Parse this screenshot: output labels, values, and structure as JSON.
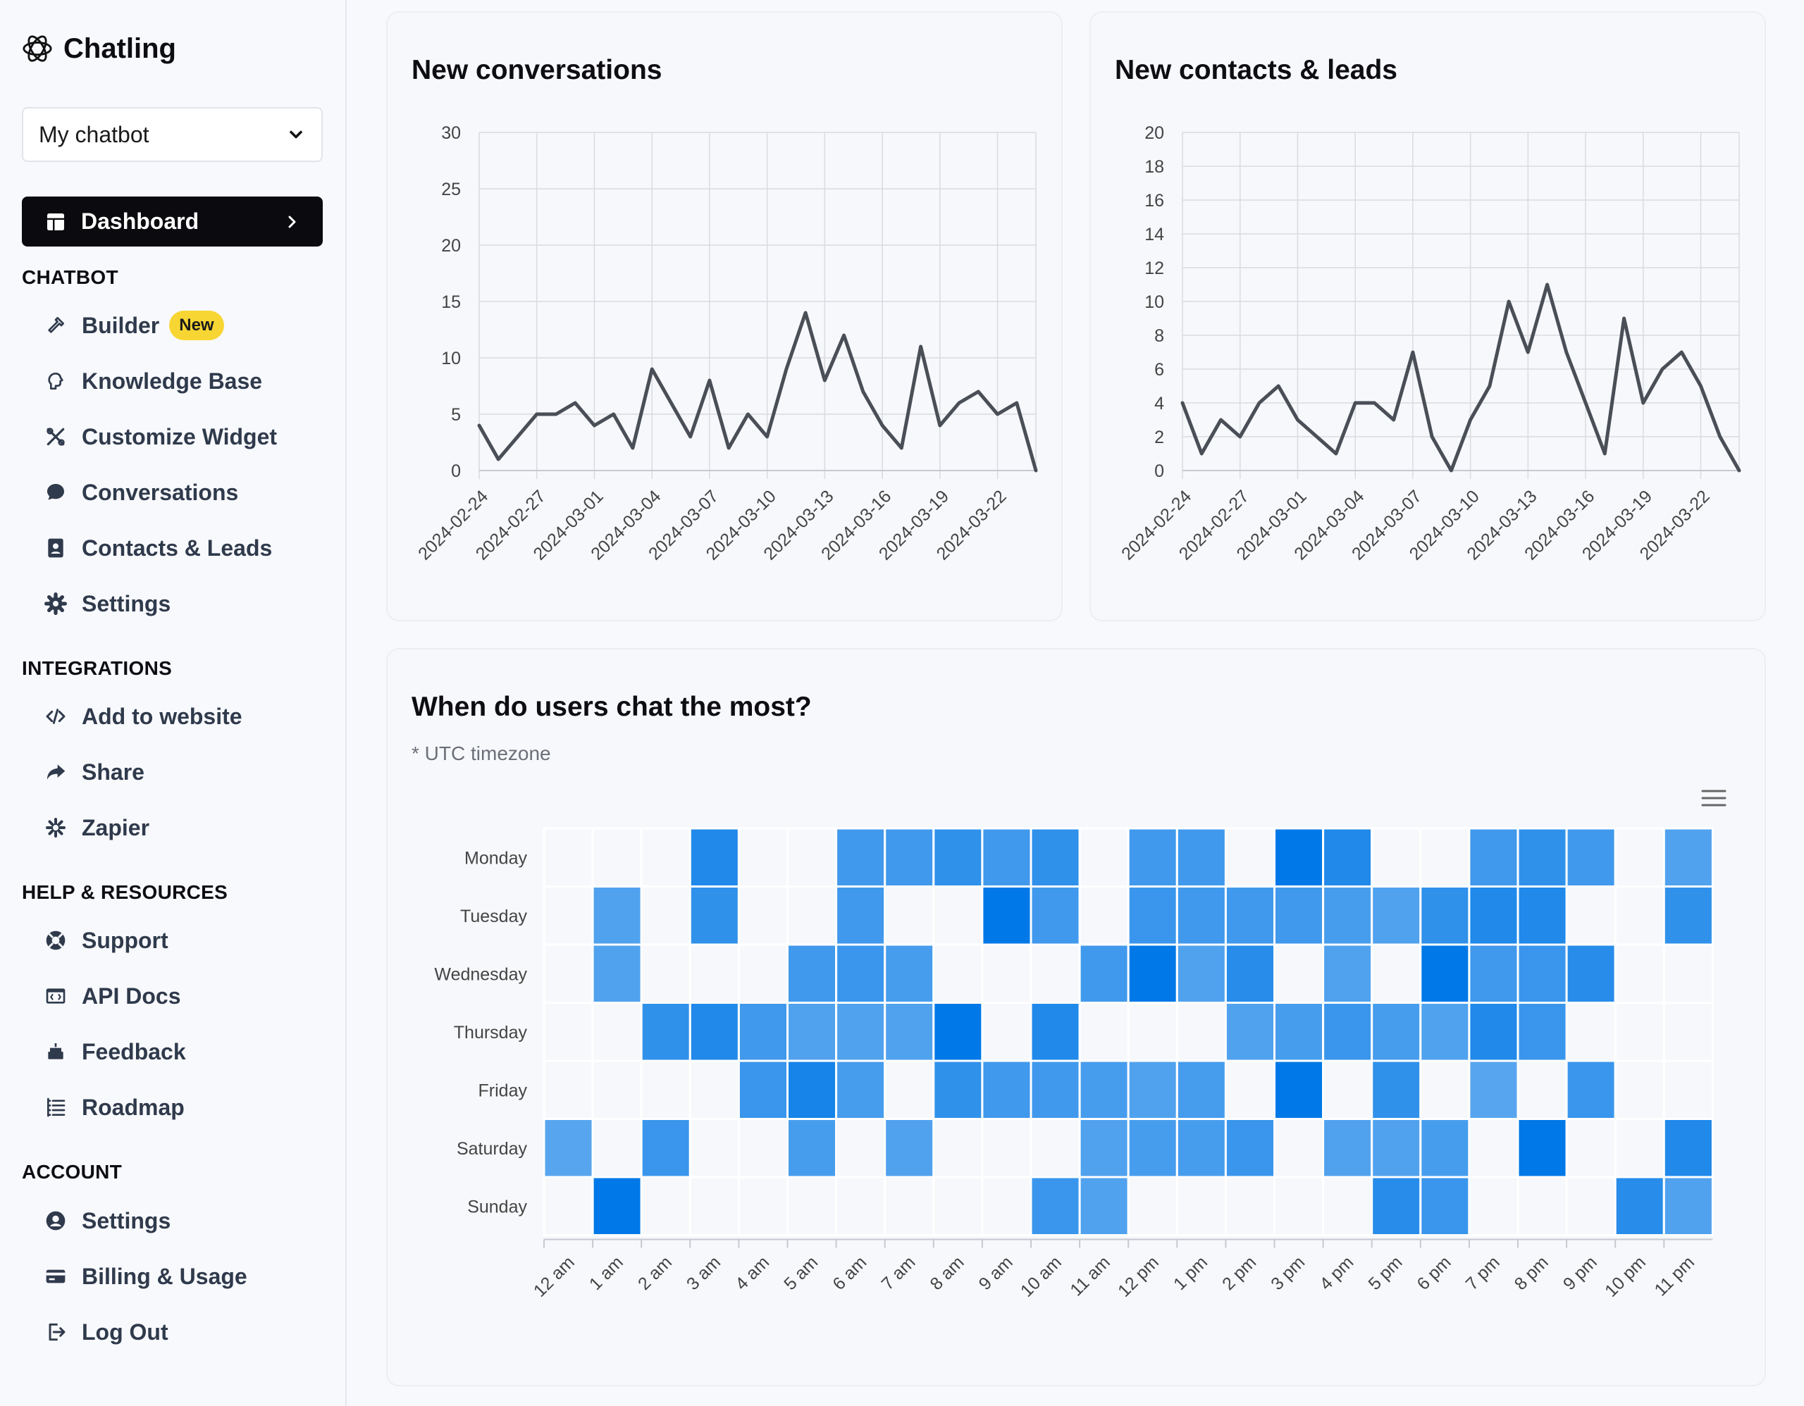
{
  "app": {
    "brand": "Chatling"
  },
  "sidebar": {
    "bot_selector": "My chatbot",
    "dashboard_label": "Dashboard",
    "sections": {
      "chatbot": "CHATBOT",
      "integrations": "INTEGRATIONS",
      "help": "HELP & RESOURCES",
      "account": "ACCOUNT"
    },
    "chatbot_items": [
      {
        "label": "Builder",
        "badge": "New",
        "icon": "hammer-icon"
      },
      {
        "label": "Knowledge Base",
        "icon": "brain-icon"
      },
      {
        "label": "Customize Widget",
        "icon": "tools-icon"
      },
      {
        "label": "Conversations",
        "icon": "chat-bubble-icon"
      },
      {
        "label": "Contacts & Leads",
        "icon": "contact-book-icon"
      },
      {
        "label": "Settings",
        "icon": "gear-icon"
      }
    ],
    "integration_items": [
      {
        "label": "Add to website",
        "icon": "code-icon"
      },
      {
        "label": "Share",
        "icon": "share-arrow-icon"
      },
      {
        "label": "Zapier",
        "icon": "asterisk-icon"
      }
    ],
    "help_items": [
      {
        "label": "Support",
        "icon": "lifebuoy-icon"
      },
      {
        "label": "API Docs",
        "icon": "api-window-icon"
      },
      {
        "label": "Feedback",
        "icon": "cake-icon"
      },
      {
        "label": "Roadmap",
        "icon": "list-icon"
      }
    ],
    "account_items": [
      {
        "label": "Settings",
        "icon": "user-circle-icon"
      },
      {
        "label": "Billing & Usage",
        "icon": "credit-card-icon"
      },
      {
        "label": "Log Out",
        "icon": "logout-icon"
      }
    ]
  },
  "colors": {
    "line": "#4a4f57",
    "heat_max": "#0078e7",
    "heat_min": "#f7f8fb"
  },
  "conversations_card": {
    "title": "New conversations"
  },
  "contacts_card": {
    "title": "New contacts & leads"
  },
  "heatmap_card": {
    "title": "When do users chat the most?",
    "note": "* UTC timezone"
  },
  "chart_data": [
    {
      "type": "line",
      "title": "New conversations",
      "ylim": [
        0,
        30
      ],
      "yticks": [
        0,
        5,
        10,
        15,
        20,
        25,
        30
      ],
      "xtick_labels": [
        "2024-02-24",
        "2024-02-27",
        "2024-03-01",
        "2024-03-04",
        "2024-03-07",
        "2024-03-10",
        "2024-03-13",
        "2024-03-16",
        "2024-03-19",
        "2024-03-22"
      ],
      "x": [
        "2024-02-24",
        "2024-02-25",
        "2024-02-26",
        "2024-02-27",
        "2024-02-28",
        "2024-02-29",
        "2024-03-01",
        "2024-03-02",
        "2024-03-03",
        "2024-03-04",
        "2024-03-05",
        "2024-03-06",
        "2024-03-07",
        "2024-03-08",
        "2024-03-09",
        "2024-03-10",
        "2024-03-11",
        "2024-03-12",
        "2024-03-13",
        "2024-03-14",
        "2024-03-15",
        "2024-03-16",
        "2024-03-17",
        "2024-03-18",
        "2024-03-19",
        "2024-03-20",
        "2024-03-21",
        "2024-03-22",
        "2024-03-23",
        "2024-03-24"
      ],
      "values": [
        4,
        1,
        3,
        5,
        5,
        6,
        4,
        5,
        2,
        9,
        6,
        3,
        8,
        2,
        5,
        3,
        9,
        14,
        8,
        12,
        7,
        4,
        2,
        11,
        4,
        6,
        7,
        5,
        6,
        0
      ],
      "grid": true
    },
    {
      "type": "line",
      "title": "New contacts & leads",
      "ylim": [
        0,
        20
      ],
      "yticks": [
        0,
        2,
        4,
        6,
        8,
        10,
        12,
        14,
        16,
        18,
        20
      ],
      "xtick_labels": [
        "2024-02-24",
        "2024-02-27",
        "2024-03-01",
        "2024-03-04",
        "2024-03-07",
        "2024-03-10",
        "2024-03-13",
        "2024-03-16",
        "2024-03-19",
        "2024-03-22"
      ],
      "x": [
        "2024-02-24",
        "2024-02-25",
        "2024-02-26",
        "2024-02-27",
        "2024-02-28",
        "2024-02-29",
        "2024-03-01",
        "2024-03-02",
        "2024-03-03",
        "2024-03-04",
        "2024-03-05",
        "2024-03-06",
        "2024-03-07",
        "2024-03-08",
        "2024-03-09",
        "2024-03-10",
        "2024-03-11",
        "2024-03-12",
        "2024-03-13",
        "2024-03-14",
        "2024-03-15",
        "2024-03-16",
        "2024-03-17",
        "2024-03-18",
        "2024-03-19",
        "2024-03-20",
        "2024-03-21",
        "2024-03-22",
        "2024-03-23",
        "2024-03-24"
      ],
      "values": [
        4,
        1,
        3,
        2,
        4,
        5,
        3,
        2,
        1,
        4,
        4,
        3,
        7,
        2,
        0,
        3,
        5,
        10,
        7,
        11,
        7,
        4,
        1,
        9,
        4,
        6,
        7,
        5,
        2,
        0
      ],
      "grid": true
    },
    {
      "type": "heatmap",
      "title": "When do users chat the most?",
      "rows": [
        "Monday",
        "Tuesday",
        "Wednesday",
        "Thursday",
        "Friday",
        "Saturday",
        "Sunday"
      ],
      "columns": [
        "12 am",
        "1 am",
        "2 am",
        "3 am",
        "4 am",
        "5 am",
        "6 am",
        "7 am",
        "8 am",
        "9 am",
        "10 am",
        "11 am",
        "12 pm",
        "1 pm",
        "2 pm",
        "3 pm",
        "4 pm",
        "5 pm",
        "6 pm",
        "7 pm",
        "8 pm",
        "9 pm",
        "10 pm",
        "11 pm"
      ],
      "scale_max": 5,
      "values": [
        [
          0,
          0,
          0,
          4,
          0,
          0,
          3,
          3,
          3.5,
          3,
          3.5,
          0,
          3,
          3,
          0,
          5,
          4,
          0,
          0,
          3,
          3.5,
          3,
          0,
          2.5
        ],
        [
          0,
          2.5,
          0,
          3.5,
          0,
          0,
          3,
          0,
          0,
          5,
          3,
          0,
          3.2,
          3,
          3,
          3,
          2.8,
          2.5,
          3.5,
          4,
          4,
          0,
          0,
          3.5
        ],
        [
          0,
          2.5,
          0,
          0,
          0,
          3,
          3.2,
          2.8,
          0,
          0,
          0,
          3,
          5,
          2.5,
          3.8,
          0,
          2.5,
          0,
          5,
          3,
          3.2,
          3.8,
          0,
          0
        ],
        [
          0,
          0,
          3.5,
          4,
          3,
          2.5,
          2.5,
          2.5,
          5,
          0,
          4,
          0,
          0,
          0,
          2.5,
          2.8,
          3.2,
          2.8,
          2.5,
          4,
          3.2,
          0,
          0,
          0
        ],
        [
          0,
          0,
          0,
          0,
          3.2,
          4.3,
          2.8,
          0,
          3.5,
          3,
          3,
          2.8,
          2.5,
          2.8,
          0,
          5,
          0,
          3.5,
          0,
          2.3,
          0,
          3.2,
          0,
          0
        ],
        [
          2.3,
          0,
          3.2,
          0,
          0,
          2.8,
          0,
          2.5,
          0,
          0,
          0,
          2.5,
          2.8,
          2.8,
          3.2,
          0,
          2.5,
          2.5,
          2.8,
          0,
          5,
          0,
          0,
          4
        ],
        [
          0,
          5,
          0,
          0,
          0,
          0,
          0,
          0,
          0,
          0,
          3.2,
          2.5,
          0,
          0,
          0,
          0,
          0,
          3.8,
          3.2,
          0,
          0,
          0,
          3.8,
          2.5
        ]
      ]
    }
  ]
}
